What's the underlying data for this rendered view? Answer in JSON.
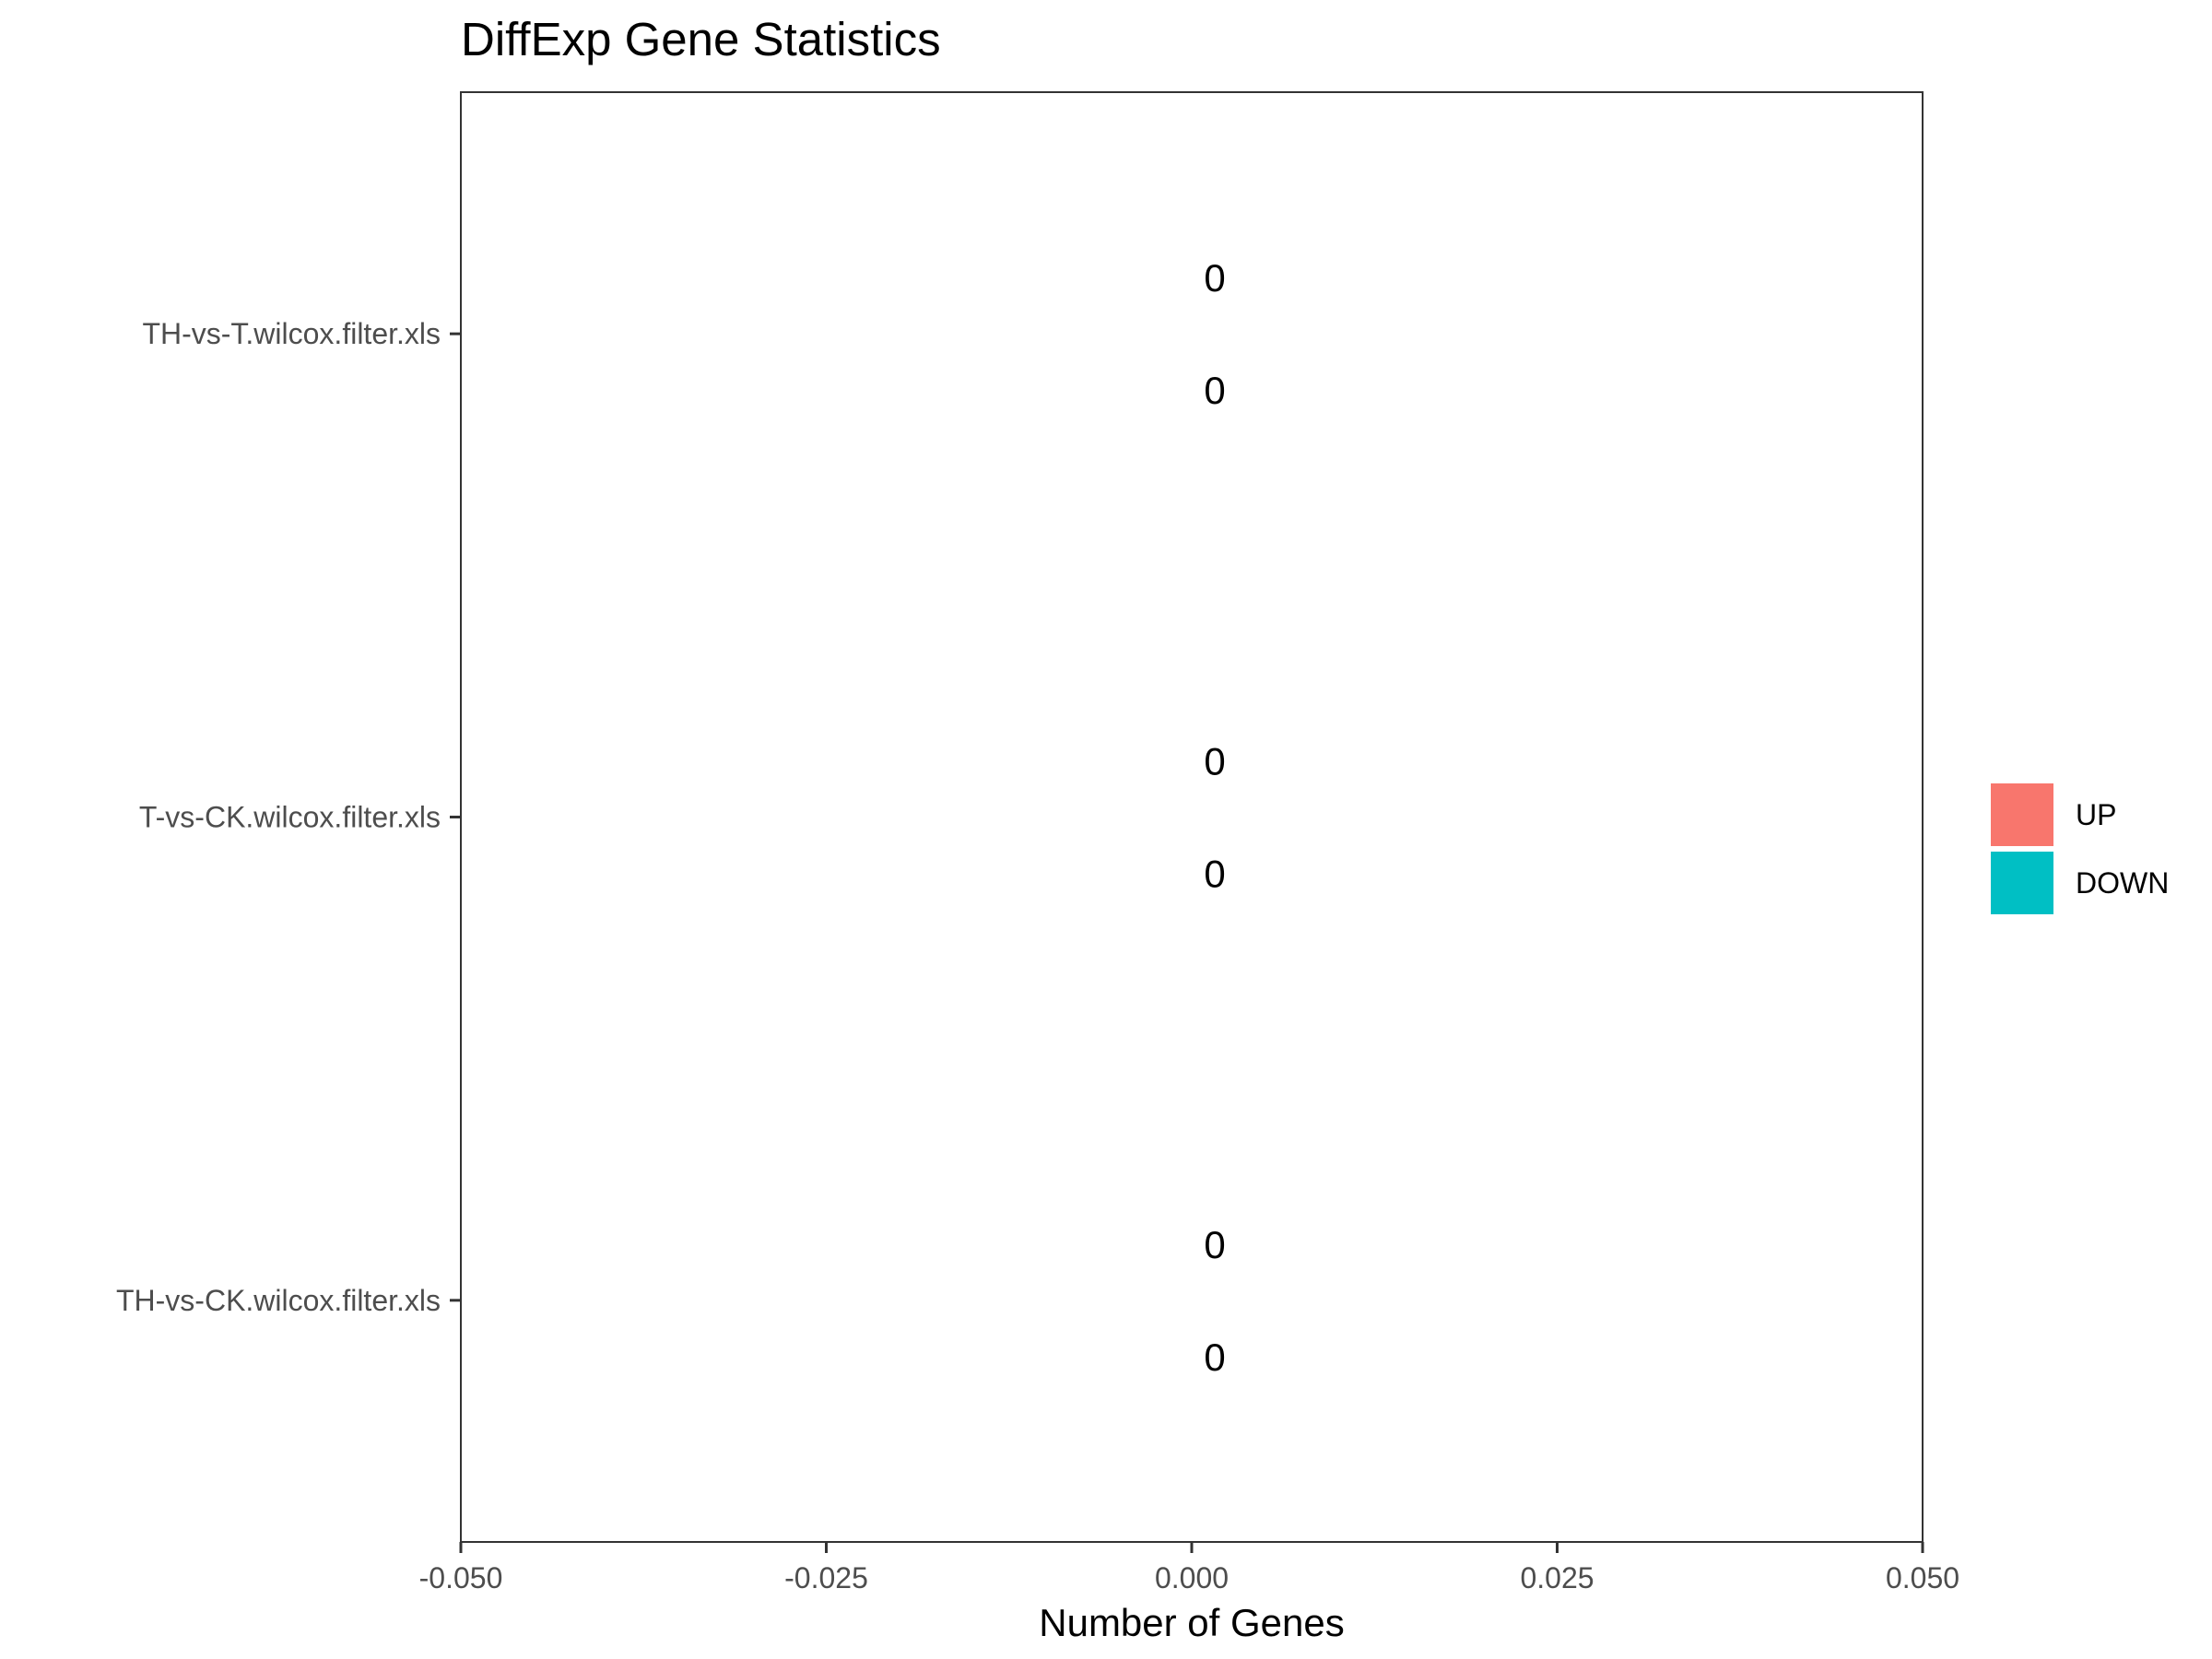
{
  "chart_data": {
    "type": "bar",
    "orientation": "horizontal",
    "title": "DiffExp Gene Statistics",
    "xlabel": "Number of Genes",
    "ylabel": "",
    "xlim": [
      -0.05,
      0.05
    ],
    "x_ticks": [
      -0.05,
      -0.025,
      0.0,
      0.025,
      0.05
    ],
    "x_tick_labels": [
      "-0.050",
      "-0.025",
      "0.000",
      "0.025",
      "0.050"
    ],
    "categories": [
      "TH-vs-T.wilcox.filter.xls",
      "T-vs-CK.wilcox.filter.xls",
      "TH-vs-CK.wilcox.filter.xls"
    ],
    "series": [
      {
        "name": "UP",
        "values": [
          0,
          0,
          0
        ],
        "labels": [
          "0",
          "0",
          "0"
        ],
        "color": "#F8766D"
      },
      {
        "name": "DOWN",
        "values": [
          0,
          0,
          0
        ],
        "labels": [
          "0",
          "0",
          "0"
        ],
        "color": "#00BFC4"
      }
    ],
    "grid": false,
    "legend_position": "right"
  }
}
